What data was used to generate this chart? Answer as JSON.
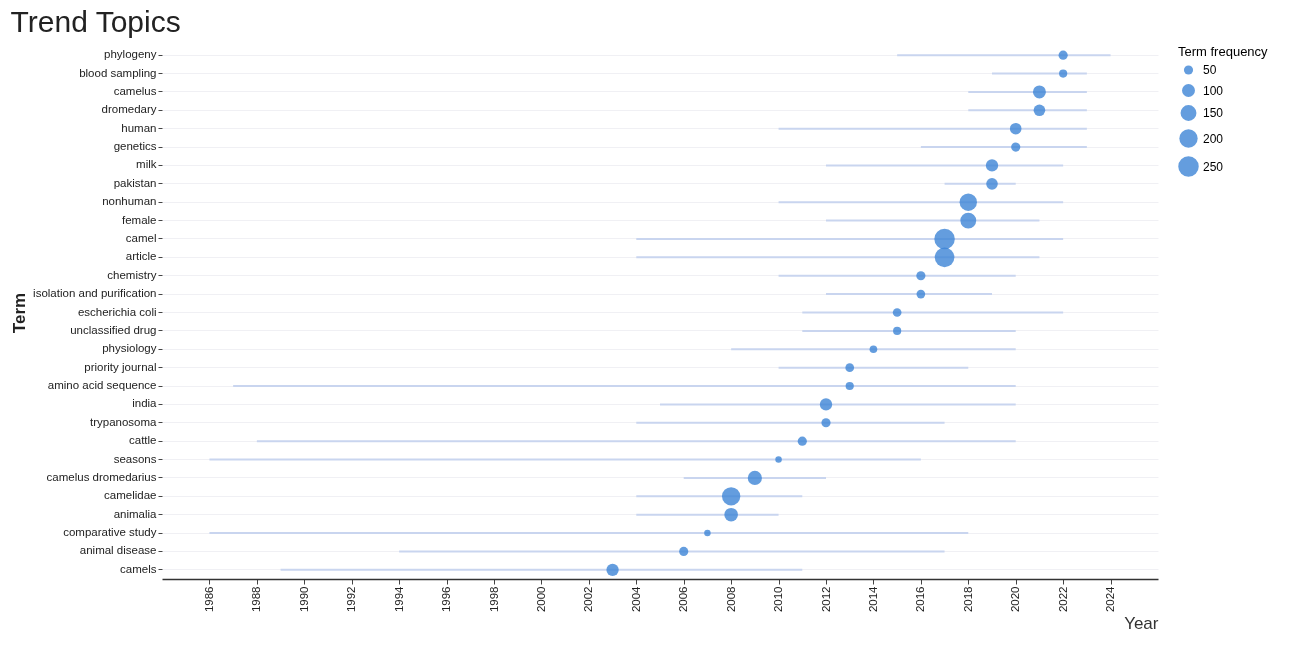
{
  "chart_data": {
    "type": "bubble",
    "orientation": "horizontal",
    "title": "Trend Topics",
    "xlabel": "Year",
    "ylabel": "Term",
    "legend_title": "Term frequency",
    "grid": "y",
    "categories": [
      "phylogeny",
      "blood sampling",
      "camelus",
      "dromedary",
      "human",
      "genetics",
      "milk",
      "pakistan",
      "nonhuman",
      "female",
      "camel",
      "article",
      "chemistry",
      "isolation and purification",
      "escherichia coli",
      "unclassified drug",
      "physiology",
      "priority journal",
      "amino acid sequence",
      "india",
      "trypanosoma",
      "cattle",
      "seasons",
      "camelus dromedarius",
      "camelidae",
      "animalia",
      "comparative study",
      "animal disease",
      "camels"
    ],
    "values": [
      2022,
      2022,
      2021,
      2021,
      2020,
      2020,
      2019,
      2019,
      2018,
      2018,
      2017,
      2017,
      2016,
      2016,
      2015,
      2015,
      2014,
      2013,
      2013,
      2012,
      2012,
      2011,
      2010,
      2009,
      2008,
      2008,
      2007,
      2006,
      2003
    ],
    "errors": [
      [
        2015,
        2024
      ],
      [
        2019,
        2023
      ],
      [
        2018,
        2023
      ],
      [
        2018,
        2023
      ],
      [
        2010,
        2023
      ],
      [
        2016,
        2023
      ],
      [
        2012,
        2022
      ],
      [
        2017,
        2020
      ],
      [
        2010,
        2022
      ],
      [
        2012,
        2021
      ],
      [
        2004,
        2022
      ],
      [
        2004,
        2021
      ],
      [
        2010,
        2020
      ],
      [
        2012,
        2019
      ],
      [
        2011,
        2022
      ],
      [
        2011,
        2020
      ],
      [
        2008,
        2020
      ],
      [
        2010,
        2018
      ],
      [
        1987,
        2020
      ],
      [
        2005,
        2020
      ],
      [
        2004,
        2017
      ],
      [
        1988,
        2020
      ],
      [
        1986,
        2016
      ],
      [
        2006,
        2012
      ],
      [
        2004,
        2011
      ],
      [
        2004,
        2010
      ],
      [
        1986,
        2018
      ],
      [
        1994,
        2017
      ],
      [
        1989,
        2011
      ]
    ],
    "sizes": [
      50,
      40,
      100,
      80,
      80,
      50,
      90,
      80,
      180,
      150,
      250,
      230,
      50,
      45,
      45,
      40,
      35,
      45,
      40,
      90,
      50,
      50,
      25,
      120,
      200,
      110,
      25,
      50,
      90
    ],
    "size_legend": [
      50,
      100,
      150,
      200,
      250
    ],
    "color": "#3d85d6",
    "xlim": [
      1984,
      2026
    ],
    "xticks": [
      1986,
      1988,
      1990,
      1992,
      1994,
      1996,
      1998,
      2000,
      2002,
      2004,
      2006,
      2008,
      2010,
      2012,
      2014,
      2016,
      2018,
      2020,
      2022,
      2024
    ]
  }
}
